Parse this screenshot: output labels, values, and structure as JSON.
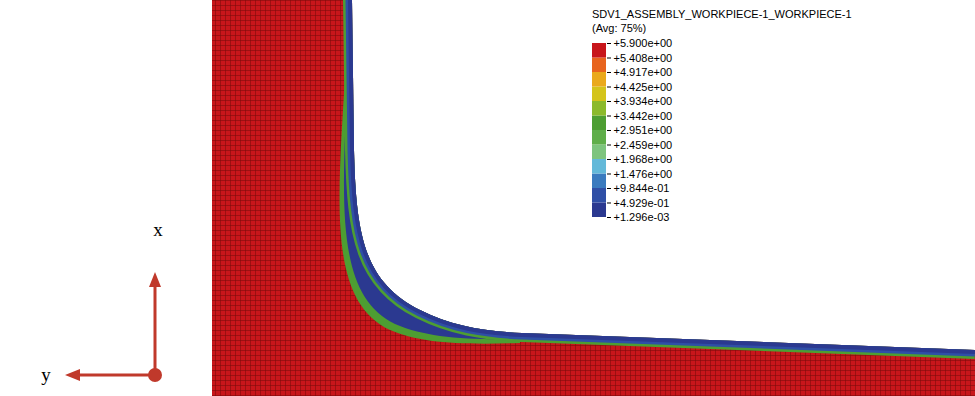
{
  "chart_data": {
    "type": "contour",
    "title": "SDV1_ASSEMBLY_WORKPIECE-1_WORKPIECE-1",
    "subtitle": "(Avg: 75%)",
    "colorbar": {
      "range": [
        0.001296,
        5.9
      ],
      "ticks": [
        {
          "value": 5.9,
          "label": "+5.900e+00"
        },
        {
          "value": 5.408,
          "label": "+5.408e+00"
        },
        {
          "value": 4.917,
          "label": "+4.917e+00"
        },
        {
          "value": 4.425,
          "label": "+4.425e+00"
        },
        {
          "value": 3.934,
          "label": "+3.934e+00"
        },
        {
          "value": 3.442,
          "label": "+3.442e+00"
        },
        {
          "value": 2.951,
          "label": "+2.951e+00"
        },
        {
          "value": 2.459,
          "label": "+2.459e+00"
        },
        {
          "value": 1.968,
          "label": "+1.968e+00"
        },
        {
          "value": 1.476,
          "label": "+1.476e+00"
        },
        {
          "value": 0.9844,
          "label": "+9.844e-01"
        },
        {
          "value": 0.4929,
          "label": "+4.929e-01"
        },
        {
          "value": 0.001296,
          "label": "+1.296e-03"
        }
      ],
      "colors": [
        "#2b3990",
        "#2f4fa6",
        "#3a7bbf",
        "#63b9d9",
        "#7dc47e",
        "#5fae4a",
        "#4d9e32",
        "#8cba2c",
        "#d4c41a",
        "#eaa91c",
        "#e8641e",
        "#c8161b"
      ]
    },
    "axis_labels": {
      "x": "x",
      "y": "y"
    }
  }
}
